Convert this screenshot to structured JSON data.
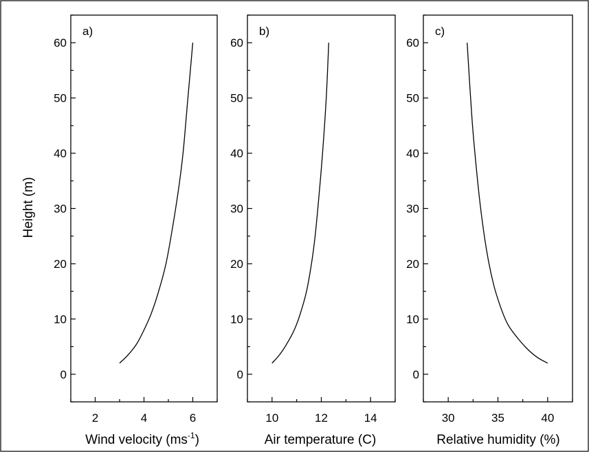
{
  "chart_data": [
    {
      "type": "line",
      "panel_label": "a)",
      "xlabel": "Wind velocity (ms",
      "xlabel_sup": "-1",
      "xlabel_tail": ")",
      "ylabel": "Height (m)",
      "xlim": [
        1,
        7
      ],
      "ylim": [
        -5,
        65
      ],
      "xticks": [
        2,
        4,
        6
      ],
      "xticks_minor": [
        1,
        3,
        5,
        7
      ],
      "yticks": [
        0,
        10,
        20,
        30,
        40,
        50,
        60
      ],
      "grid": false,
      "series": [
        {
          "x": [
            3.0,
            3.35,
            3.7,
            4.0,
            4.3,
            4.6,
            4.9,
            5.15,
            5.4,
            5.6,
            5.8,
            6.0
          ],
          "y": [
            2,
            3.5,
            5.5,
            8,
            11,
            15,
            20,
            26,
            33,
            40,
            50,
            60
          ]
        }
      ]
    },
    {
      "type": "line",
      "panel_label": "b)",
      "xlabel": "Air temperature (C)",
      "xlim": [
        9,
        15
      ],
      "ylim": [
        -5,
        65
      ],
      "xticks": [
        10,
        12,
        14
      ],
      "xticks_minor": [
        9,
        11,
        13,
        15
      ],
      "yticks": [
        0,
        10,
        20,
        30,
        40,
        50,
        60
      ],
      "grid": false,
      "series": [
        {
          "x": [
            10.0,
            10.3,
            10.6,
            10.9,
            11.15,
            11.4,
            11.6,
            11.75,
            11.9,
            12.05,
            12.2,
            12.3
          ],
          "y": [
            2,
            3.5,
            5.5,
            8,
            11,
            15,
            20,
            25,
            32,
            40,
            50,
            60
          ]
        }
      ]
    },
    {
      "type": "line",
      "panel_label": "c)",
      "xlabel": "Relative humidity (%)",
      "xlim": [
        27.5,
        42.5
      ],
      "ylim": [
        -5,
        65
      ],
      "xticks": [
        30,
        35,
        40
      ],
      "xticks_minor": [
        27.5,
        32.5,
        37.5,
        42.5
      ],
      "yticks": [
        0,
        10,
        20,
        30,
        40,
        50,
        60
      ],
      "grid": false,
      "series": [
        {
          "x": [
            40.0,
            39.0,
            38.0,
            37.0,
            36.0,
            35.3,
            34.6,
            34.0,
            33.4,
            32.9,
            32.4,
            31.9
          ],
          "y": [
            2,
            3,
            4.5,
            6.5,
            9,
            12,
            16,
            21,
            28,
            36,
            46,
            60
          ]
        }
      ]
    }
  ]
}
